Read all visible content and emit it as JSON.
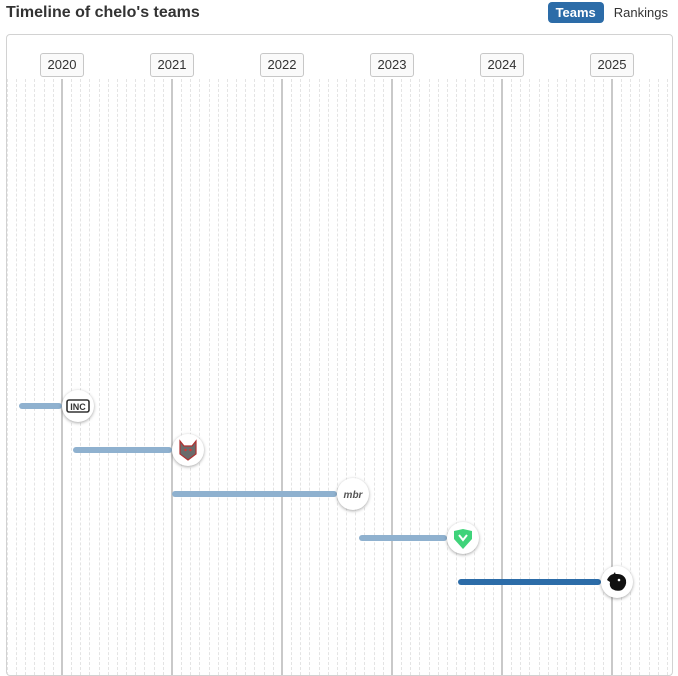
{
  "title": "Timeline of chelo's teams",
  "tabs": {
    "teams": "Teams",
    "rankings": "Rankings"
  },
  "timeline": {
    "years": [
      "2020",
      "2021",
      "2022",
      "2023",
      "2024",
      "2025"
    ],
    "teams": [
      {
        "icon": "inc-logo-icon",
        "start": 2019.6,
        "end": 2020.0,
        "current": false,
        "logo_text": "INC"
      },
      {
        "icon": "wolf-logo-icon",
        "start": 2020.1,
        "end": 2021.0,
        "current": false
      },
      {
        "icon": "mibr-logo-icon",
        "start": 2021.0,
        "end": 2022.5,
        "current": false,
        "logo_text": "mbr"
      },
      {
        "icon": "imperial-logo-icon",
        "start": 2022.7,
        "end": 2023.5,
        "current": false
      },
      {
        "icon": "furia-logo-icon",
        "start": 2023.6,
        "end": 2024.9,
        "current": true
      }
    ]
  },
  "colors": {
    "accent": "#2c6ca8",
    "past_bar": "#8fb1cf",
    "grid_major": "#c9c9c9",
    "imperial_green": "#3fd37a"
  }
}
